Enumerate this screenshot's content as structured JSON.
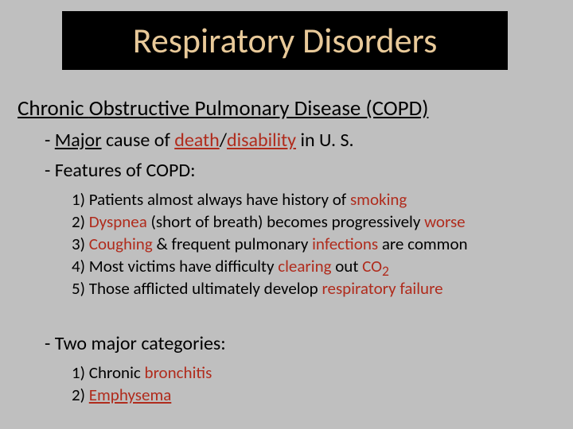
{
  "colors": {
    "background": "#bfbfbf",
    "title_box_bg": "#000000",
    "title_text": "#e8c999",
    "body_text": "#000000",
    "accent_red": "#b02b1c"
  },
  "typography": {
    "title_font": "Corbel",
    "title_size_pt": 44,
    "subtitle_size_pt": 27,
    "bullet_size_pt": 24,
    "numbered_size_pt": 21
  },
  "title": "Respiratory Disorders",
  "subtitle": {
    "pre": "Chronic ",
    "w1": "Obstructive",
    "sp1": " ",
    "w2": "Pulmonary",
    "sp2": " ",
    "w3": "Disease",
    "post": " (COPD)"
  },
  "bullet1": {
    "pre": "- ",
    "w1": "Major",
    "mid1": " cause of ",
    "w2": "death",
    "slash": "/",
    "w3": "disability",
    "post": " in U. S."
  },
  "bullet2": "- Features of COPD:",
  "features": {
    "f1": {
      "pre": "1) Patients almost always have history of ",
      "w1": "smoking"
    },
    "f2": {
      "pre": "2) ",
      "w1": "Dyspnea",
      "mid1": " (short of breath) becomes progressively ",
      "w2": "worse"
    },
    "f3": {
      "pre": "3) ",
      "w1": "Coughing",
      "mid1": " & frequent pulmonary ",
      "w2": "infections",
      "post": " are common"
    },
    "f4": {
      "pre": "4) Most victims have difficulty ",
      "w1": "clearing",
      "mid1": " out ",
      "w2": "CO",
      "sub": "2"
    },
    "f5": {
      "pre": "5) Those afflicted ultimately develop ",
      "w1": "respiratory failure"
    }
  },
  "bullet3": "- Two major categories:",
  "categories": {
    "c1": {
      "pre": "1) Chronic ",
      "w1": "bronchitis"
    },
    "c2": {
      "pre": "2) ",
      "w1": "Emphysema"
    }
  }
}
